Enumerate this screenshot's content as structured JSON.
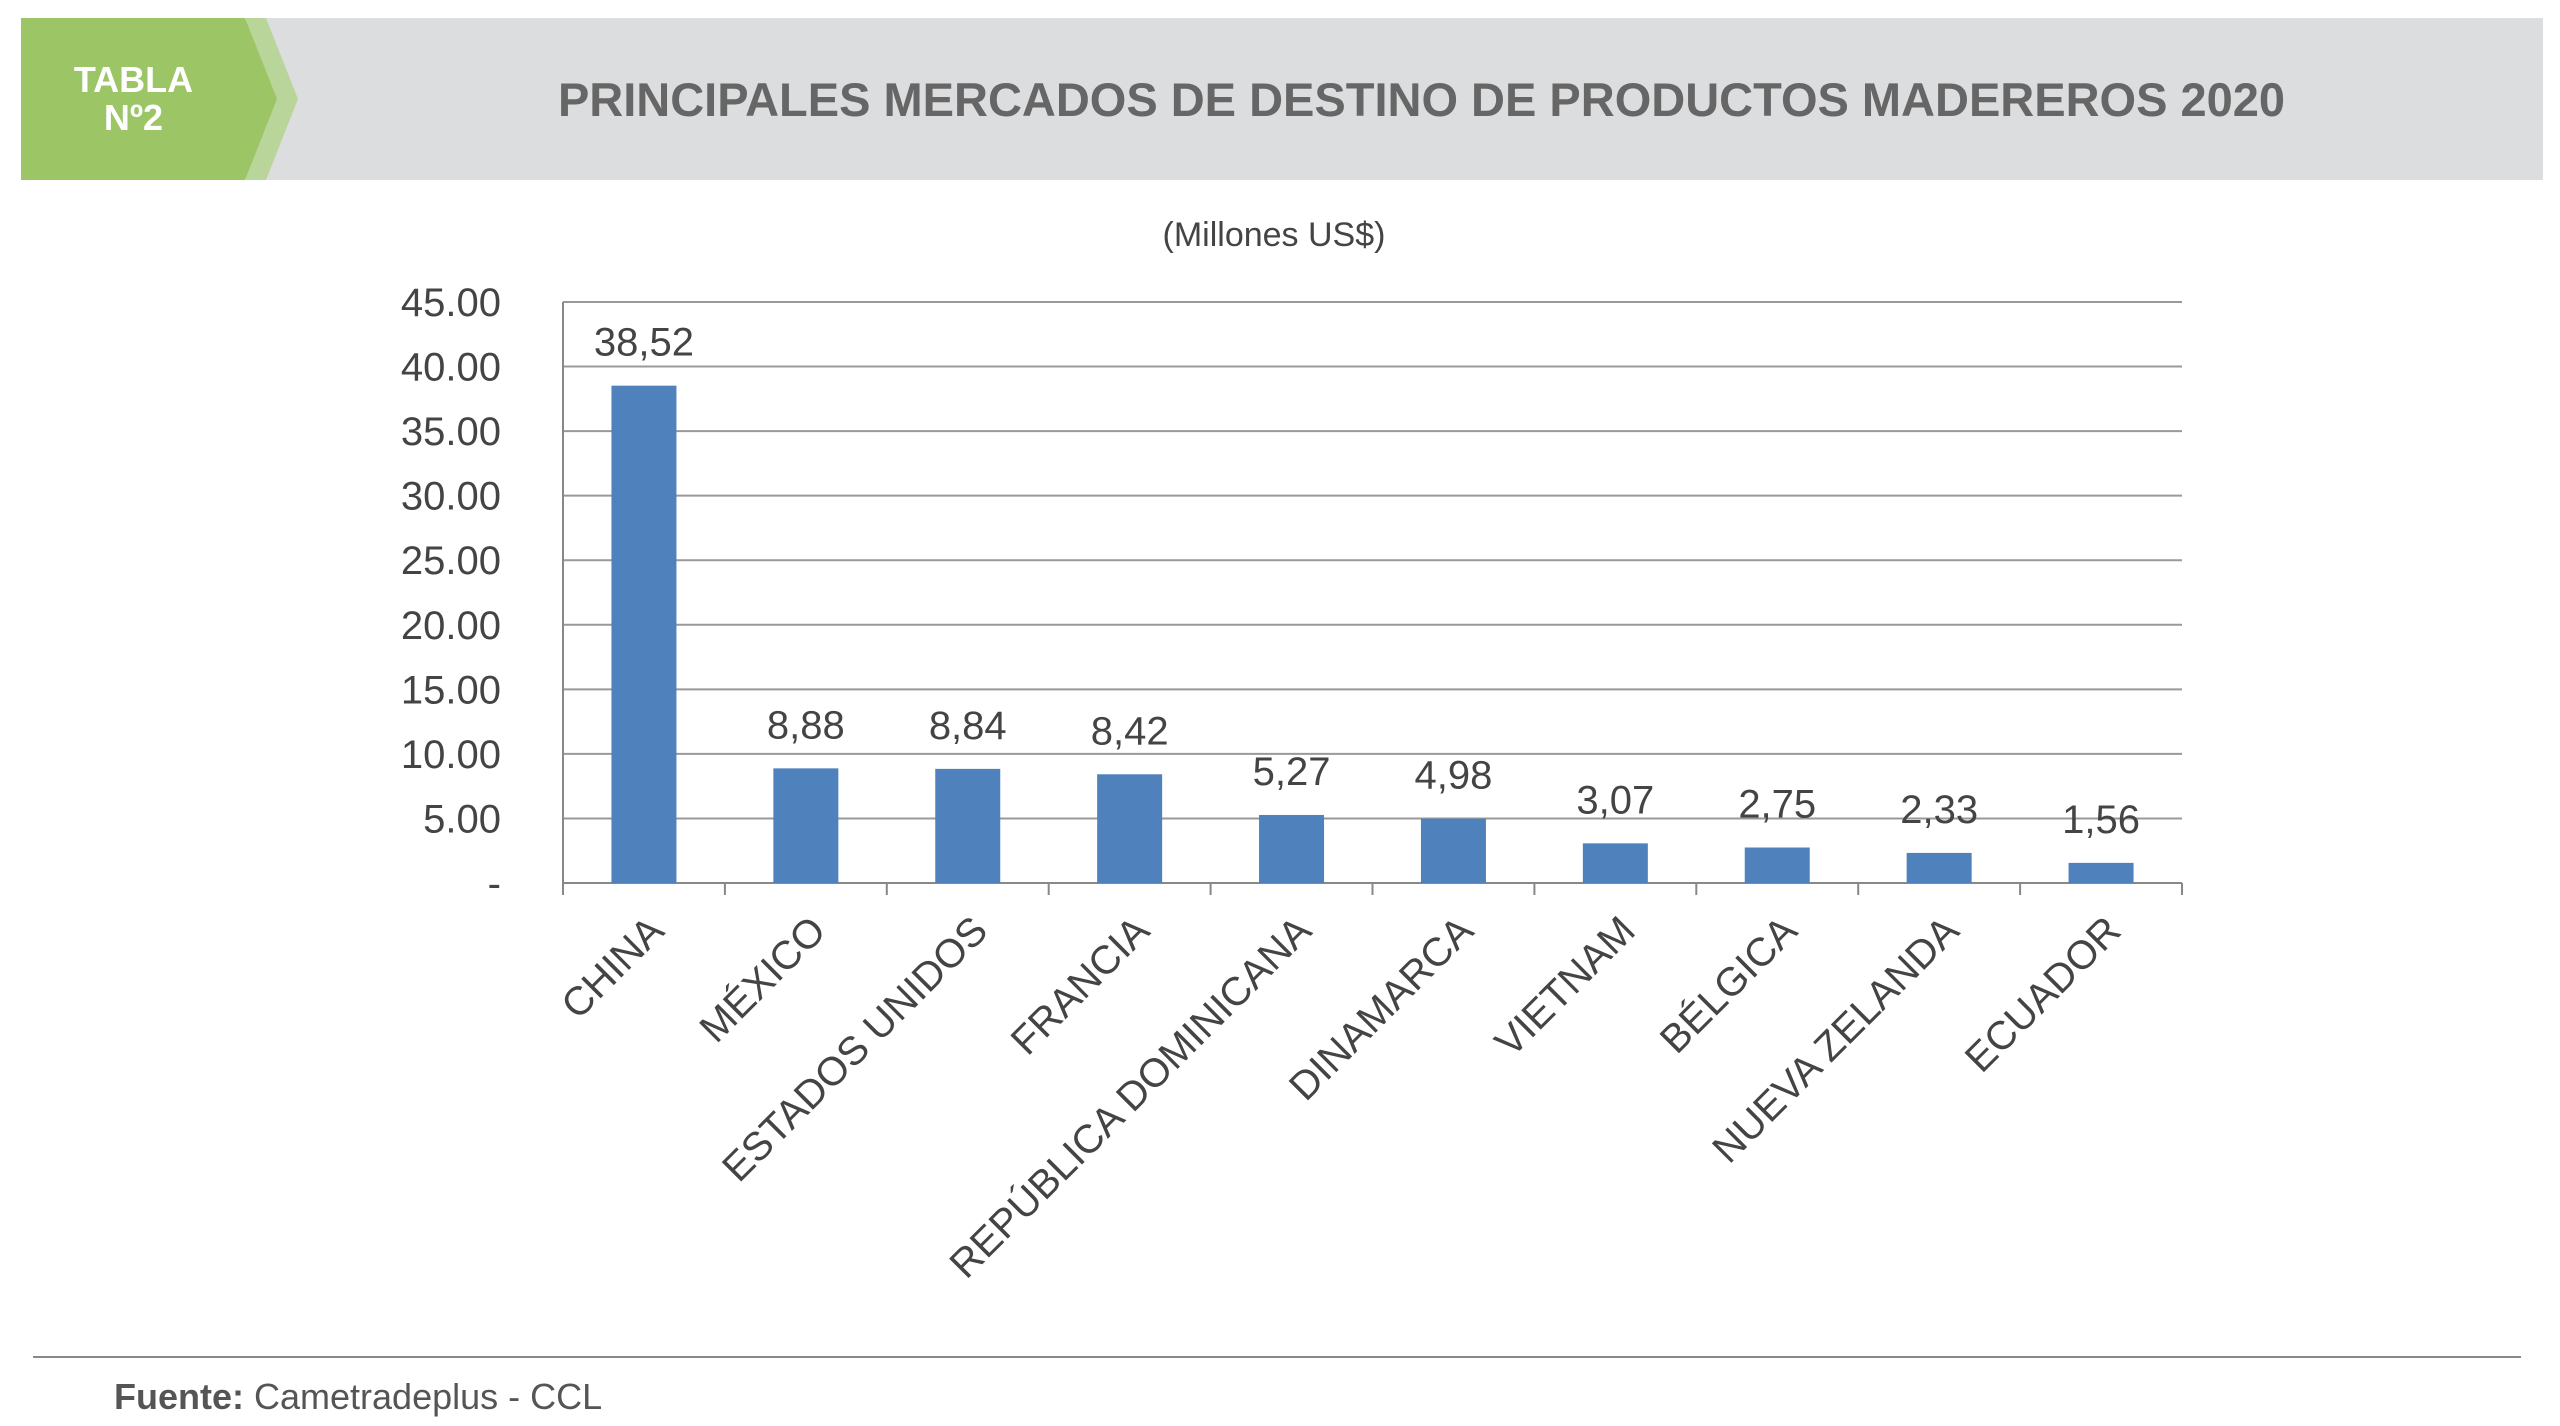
{
  "header": {
    "badge_line1": "TABLA",
    "badge_line2": "Nº2",
    "title": "PRINCIPALES MERCADOS DE DESTINO DE PRODUCTOS MADEREROS 2020"
  },
  "footer": {
    "source_label": "Fuente:",
    "source_value": "Cametradeplus - CCL"
  },
  "colors": {
    "bar": "#4f81bd",
    "badge": "#9cc566",
    "badge_stripe": "#b9d59a",
    "header_bg": "#dcdddf"
  },
  "chart_data": {
    "type": "bar",
    "subtitle": "(Millones US$)",
    "categories": [
      "CHINA",
      "MÉXICO",
      "ESTADOS UNIDOS",
      "FRANCIA",
      "REPÚBLICA DOMINICANA",
      "DINAMARCA",
      "VIETNAM",
      "BÉLGICA",
      "NUEVA ZELANDA",
      "ECUADOR"
    ],
    "values": [
      38.52,
      8.88,
      8.84,
      8.42,
      5.27,
      4.98,
      3.07,
      2.75,
      2.33,
      1.56
    ],
    "data_labels": [
      "38,52",
      "8,88",
      "8,84",
      "8,42",
      "5,27",
      "4,98",
      "3,07",
      "2,75",
      "2,33",
      "1,56"
    ],
    "ylim": [
      0,
      45
    ],
    "yticks": [
      0,
      5,
      10,
      15,
      20,
      25,
      30,
      35,
      40,
      45
    ],
    "ytick_labels": [
      "-",
      "5.00",
      "10.00",
      "15.00",
      "20.00",
      "25.00",
      "30.00",
      "35.00",
      "40.00",
      "45.00"
    ],
    "grid": true,
    "legend": "none"
  }
}
